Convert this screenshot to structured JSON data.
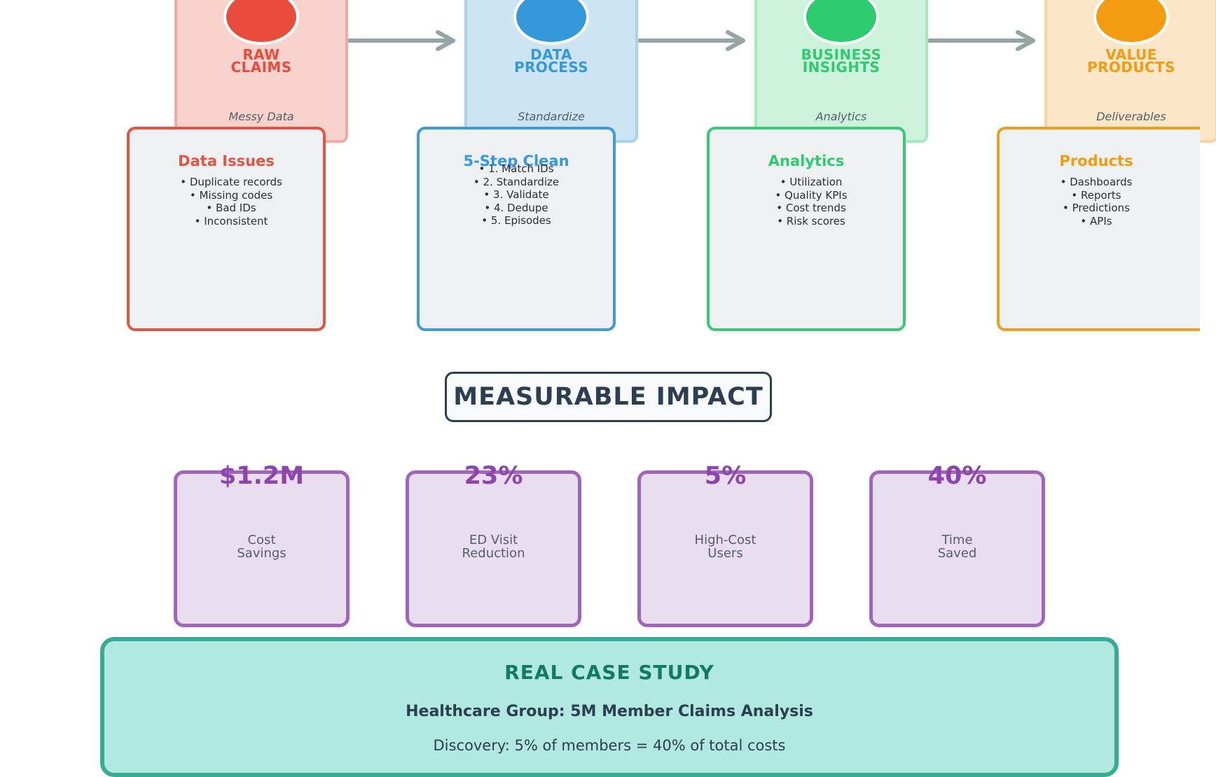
{
  "colors": {
    "raw": "#e74c3c",
    "process": "#3498db",
    "insights": "#2ecc71",
    "products": "#f39c12",
    "impact": "#8e44ad",
    "case": "#117a65",
    "arrow": "#95a5a6"
  },
  "pipeline": {
    "stages": [
      {
        "title_line1": "RAW",
        "title_line2": "CLAIMS",
        "subtitle": "Messy Data"
      },
      {
        "title_line1": "DATA",
        "title_line2": "PROCESS",
        "subtitle": "Standardize"
      },
      {
        "title_line1": "BUSINESS",
        "title_line2": "INSIGHTS",
        "subtitle": "Analytics"
      },
      {
        "title_line1": "VALUE",
        "title_line2": "PRODUCTS",
        "subtitle": "Deliverables"
      }
    ],
    "details": [
      {
        "title": "Data Issues",
        "items": [
          "• Duplicate records",
          "• Missing codes",
          "• Bad IDs",
          "• Inconsistent"
        ]
      },
      {
        "title": "5-Step Clean",
        "items": [
          "• 1. Match IDs",
          "• 2. Standardize",
          "• 3. Validate",
          "• 4. Dedupe",
          "• 5. Episodes"
        ]
      },
      {
        "title": "Analytics",
        "items": [
          "• Utilization",
          "• Quality KPIs",
          "• Cost trends",
          "• Risk scores"
        ]
      },
      {
        "title": "Products",
        "items": [
          "• Dashboards",
          "• Reports",
          "• Predictions",
          "• APIs"
        ]
      }
    ]
  },
  "impact": {
    "heading": "MEASURABLE IMPACT",
    "metrics": [
      {
        "value": "$1.2M",
        "label_line1": "Cost",
        "label_line2": "Savings"
      },
      {
        "value": "23%",
        "label_line1": "ED Visit",
        "label_line2": "Reduction"
      },
      {
        "value": "5%",
        "label_line1": "High-Cost",
        "label_line2": "Users"
      },
      {
        "value": "40%",
        "label_line1": "Time",
        "label_line2": "Saved"
      }
    ]
  },
  "case_study": {
    "title": "REAL CASE STUDY",
    "subtitle": "Healthcare Group: 5M Member Claims Analysis",
    "finding": "Discovery: 5% of members = 40% of total costs"
  }
}
